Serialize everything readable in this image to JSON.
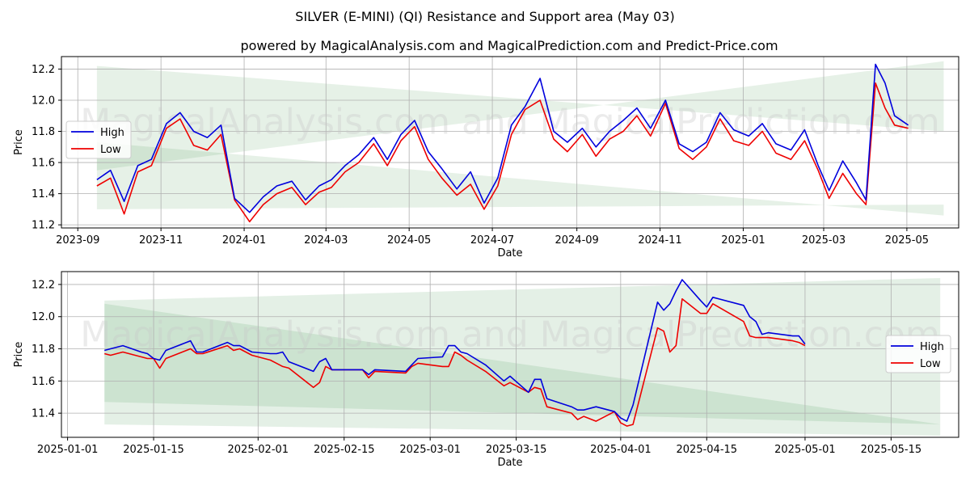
{
  "title": "SILVER (E-MINI) (QI) Resistance and Support area (May 03)",
  "subtitle": "powered by MagicalAnalysis.com and MagicalPrediction.com and Predict-Price.com",
  "watermark": "MagicalAnalysis.com and MagicalPrediction.com",
  "colors": {
    "high": "#0000dd",
    "low": "#ee0000",
    "band": "#2e8b3a"
  },
  "chart_data": [
    {
      "type": "line",
      "xlabel": "Date",
      "ylabel": "Price",
      "x_ticks": [
        "2023-09",
        "2023-11",
        "2024-01",
        "2024-03",
        "2024-05",
        "2024-07",
        "2024-09",
        "2024-11",
        "2025-01",
        "2025-03",
        "2025-05"
      ],
      "y_ticks": [
        "11.2",
        "11.4",
        "11.6",
        "11.8",
        "12.0",
        "12.2"
      ],
      "ylim": [
        11.18,
        12.28
      ],
      "legend": [
        "High",
        "Low"
      ],
      "legend_position": "upper-left",
      "bands": [
        {
          "name": "resistance",
          "start": [
            11.55,
            12.22
          ],
          "end": [
            12.25,
            11.8
          ]
        },
        {
          "name": "support",
          "start": [
            11.3,
            11.73
          ],
          "end": [
            11.33,
            11.26
          ]
        }
      ],
      "x": [
        "2023-09-15",
        "2023-09-25",
        "2023-10-05",
        "2023-10-15",
        "2023-10-25",
        "2023-11-05",
        "2023-11-15",
        "2023-11-25",
        "2023-12-05",
        "2023-12-15",
        "2023-12-25",
        "2024-01-05",
        "2024-01-15",
        "2024-01-25",
        "2024-02-05",
        "2024-02-15",
        "2024-02-25",
        "2024-03-05",
        "2024-03-15",
        "2024-03-25",
        "2024-04-05",
        "2024-04-15",
        "2024-04-25",
        "2024-05-05",
        "2024-05-15",
        "2024-05-25",
        "2024-06-05",
        "2024-06-15",
        "2024-06-25",
        "2024-07-05",
        "2024-07-15",
        "2024-07-25",
        "2024-08-05",
        "2024-08-15",
        "2024-08-25",
        "2024-09-05",
        "2024-09-15",
        "2024-09-25",
        "2024-10-05",
        "2024-10-15",
        "2024-10-25",
        "2024-11-05",
        "2024-11-15",
        "2024-11-25",
        "2024-12-05",
        "2024-12-15",
        "2024-12-25",
        "2025-01-05",
        "2025-01-15",
        "2025-01-25",
        "2025-02-05",
        "2025-02-15",
        "2025-02-25",
        "2025-03-05",
        "2025-03-15",
        "2025-03-25",
        "2025-04-01",
        "2025-04-08",
        "2025-04-15",
        "2025-04-22",
        "2025-05-02"
      ],
      "series": [
        {
          "name": "High",
          "values": [
            11.49,
            11.55,
            11.35,
            11.58,
            11.62,
            11.85,
            11.92,
            11.8,
            11.76,
            11.84,
            11.37,
            11.28,
            11.38,
            11.45,
            11.48,
            11.36,
            11.45,
            11.49,
            11.58,
            11.65,
            11.76,
            11.62,
            11.78,
            11.87,
            11.67,
            11.56,
            11.43,
            11.54,
            11.34,
            11.5,
            11.84,
            11.96,
            12.14,
            11.8,
            11.73,
            11.82,
            11.7,
            11.8,
            11.87,
            11.95,
            11.82,
            12.0,
            11.72,
            11.67,
            11.73,
            11.92,
            11.81,
            11.77,
            11.85,
            11.72,
            11.68,
            11.81,
            11.58,
            11.42,
            11.61,
            11.47,
            11.36,
            12.23,
            12.11,
            11.9,
            11.84
          ]
        },
        {
          "name": "Low",
          "values": [
            11.45,
            11.5,
            11.27,
            11.54,
            11.58,
            11.82,
            11.88,
            11.71,
            11.68,
            11.78,
            11.36,
            11.22,
            11.33,
            11.4,
            11.44,
            11.33,
            11.41,
            11.44,
            11.54,
            11.6,
            11.72,
            11.58,
            11.74,
            11.83,
            11.62,
            11.5,
            11.39,
            11.46,
            11.3,
            11.45,
            11.78,
            11.94,
            12.0,
            11.75,
            11.67,
            11.78,
            11.64,
            11.75,
            11.8,
            11.9,
            11.77,
            11.98,
            11.69,
            11.62,
            11.7,
            11.88,
            11.74,
            11.71,
            11.8,
            11.66,
            11.62,
            11.74,
            11.55,
            11.37,
            11.53,
            11.4,
            11.33,
            12.11,
            11.95,
            11.84,
            11.82
          ]
        }
      ]
    },
    {
      "type": "line",
      "xlabel": "Date",
      "ylabel": "Price",
      "x_ticks": [
        "2025-01-01",
        "2025-01-15",
        "2025-02-01",
        "2025-02-15",
        "2025-03-01",
        "2025-03-15",
        "2025-04-01",
        "2025-04-15",
        "2025-05-01",
        "2025-05-15"
      ],
      "y_ticks": [
        "11.4",
        "11.6",
        "11.8",
        "12.0",
        "12.2"
      ],
      "ylim": [
        11.25,
        12.28
      ],
      "legend": [
        "High",
        "Low"
      ],
      "legend_position": "center-right",
      "bands": [
        {
          "name": "resistance",
          "start": [
            11.47,
            12.1
          ],
          "end": [
            11.33,
            12.24
          ]
        },
        {
          "name": "support",
          "start": [
            11.33,
            12.08
          ],
          "end": [
            11.26,
            11.33
          ]
        }
      ],
      "x": [
        "2025-01-07",
        "2025-01-08",
        "2025-01-10",
        "2025-01-13",
        "2025-01-14",
        "2025-01-15",
        "2025-01-16",
        "2025-01-17",
        "2025-01-21",
        "2025-01-22",
        "2025-01-23",
        "2025-01-27",
        "2025-01-28",
        "2025-01-29",
        "2025-01-31",
        "2025-02-03",
        "2025-02-04",
        "2025-02-05",
        "2025-02-06",
        "2025-02-10",
        "2025-02-11",
        "2025-02-12",
        "2025-02-13",
        "2025-02-18",
        "2025-02-19",
        "2025-02-20",
        "2025-02-25",
        "2025-02-26",
        "2025-02-27",
        "2025-03-03",
        "2025-03-04",
        "2025-03-05",
        "2025-03-06",
        "2025-03-07",
        "2025-03-10",
        "2025-03-13",
        "2025-03-14",
        "2025-03-17",
        "2025-03-18",
        "2025-03-19",
        "2025-03-20",
        "2025-03-24",
        "2025-03-25",
        "2025-03-26",
        "2025-03-28",
        "2025-03-31",
        "2025-04-01",
        "2025-04-02",
        "2025-04-03",
        "2025-04-07",
        "2025-04-08",
        "2025-04-09",
        "2025-04-10",
        "2025-04-11",
        "2025-04-14",
        "2025-04-15",
        "2025-04-16",
        "2025-04-21",
        "2025-04-22",
        "2025-04-23",
        "2025-04-24",
        "2025-04-25",
        "2025-04-29",
        "2025-04-30",
        "2025-05-01"
      ],
      "series": [
        {
          "name": "High",
          "values": [
            11.79,
            11.8,
            11.82,
            11.78,
            11.77,
            11.74,
            11.73,
            11.79,
            11.85,
            11.78,
            11.78,
            11.84,
            11.82,
            11.82,
            11.78,
            11.77,
            11.77,
            11.78,
            11.72,
            11.66,
            11.72,
            11.74,
            11.67,
            11.67,
            11.64,
            11.67,
            11.66,
            11.7,
            11.74,
            11.75,
            11.82,
            11.82,
            11.78,
            11.77,
            11.7,
            11.6,
            11.63,
            11.53,
            11.61,
            11.61,
            11.49,
            11.44,
            11.42,
            11.42,
            11.44,
            11.41,
            11.37,
            11.35,
            11.45,
            12.09,
            12.04,
            12.08,
            12.16,
            12.23,
            12.1,
            12.06,
            12.12,
            12.07,
            12.0,
            11.97,
            11.89,
            11.9,
            11.88,
            11.88,
            11.83
          ]
        },
        {
          "name": "Low",
          "values": [
            11.77,
            11.76,
            11.78,
            11.75,
            11.74,
            11.74,
            11.68,
            11.74,
            11.8,
            11.77,
            11.77,
            11.82,
            11.79,
            11.8,
            11.76,
            11.73,
            11.71,
            11.69,
            11.68,
            11.56,
            11.59,
            11.69,
            11.67,
            11.67,
            11.62,
            11.66,
            11.65,
            11.69,
            11.71,
            11.69,
            11.69,
            11.78,
            11.76,
            11.73,
            11.66,
            11.57,
            11.59,
            11.53,
            11.56,
            11.55,
            11.44,
            11.4,
            11.36,
            11.38,
            11.35,
            11.41,
            11.34,
            11.32,
            11.33,
            11.93,
            11.91,
            11.78,
            11.82,
            12.11,
            12.02,
            12.02,
            12.08,
            11.97,
            11.88,
            11.87,
            11.87,
            11.87,
            11.85,
            11.84,
            11.82
          ]
        }
      ]
    }
  ]
}
